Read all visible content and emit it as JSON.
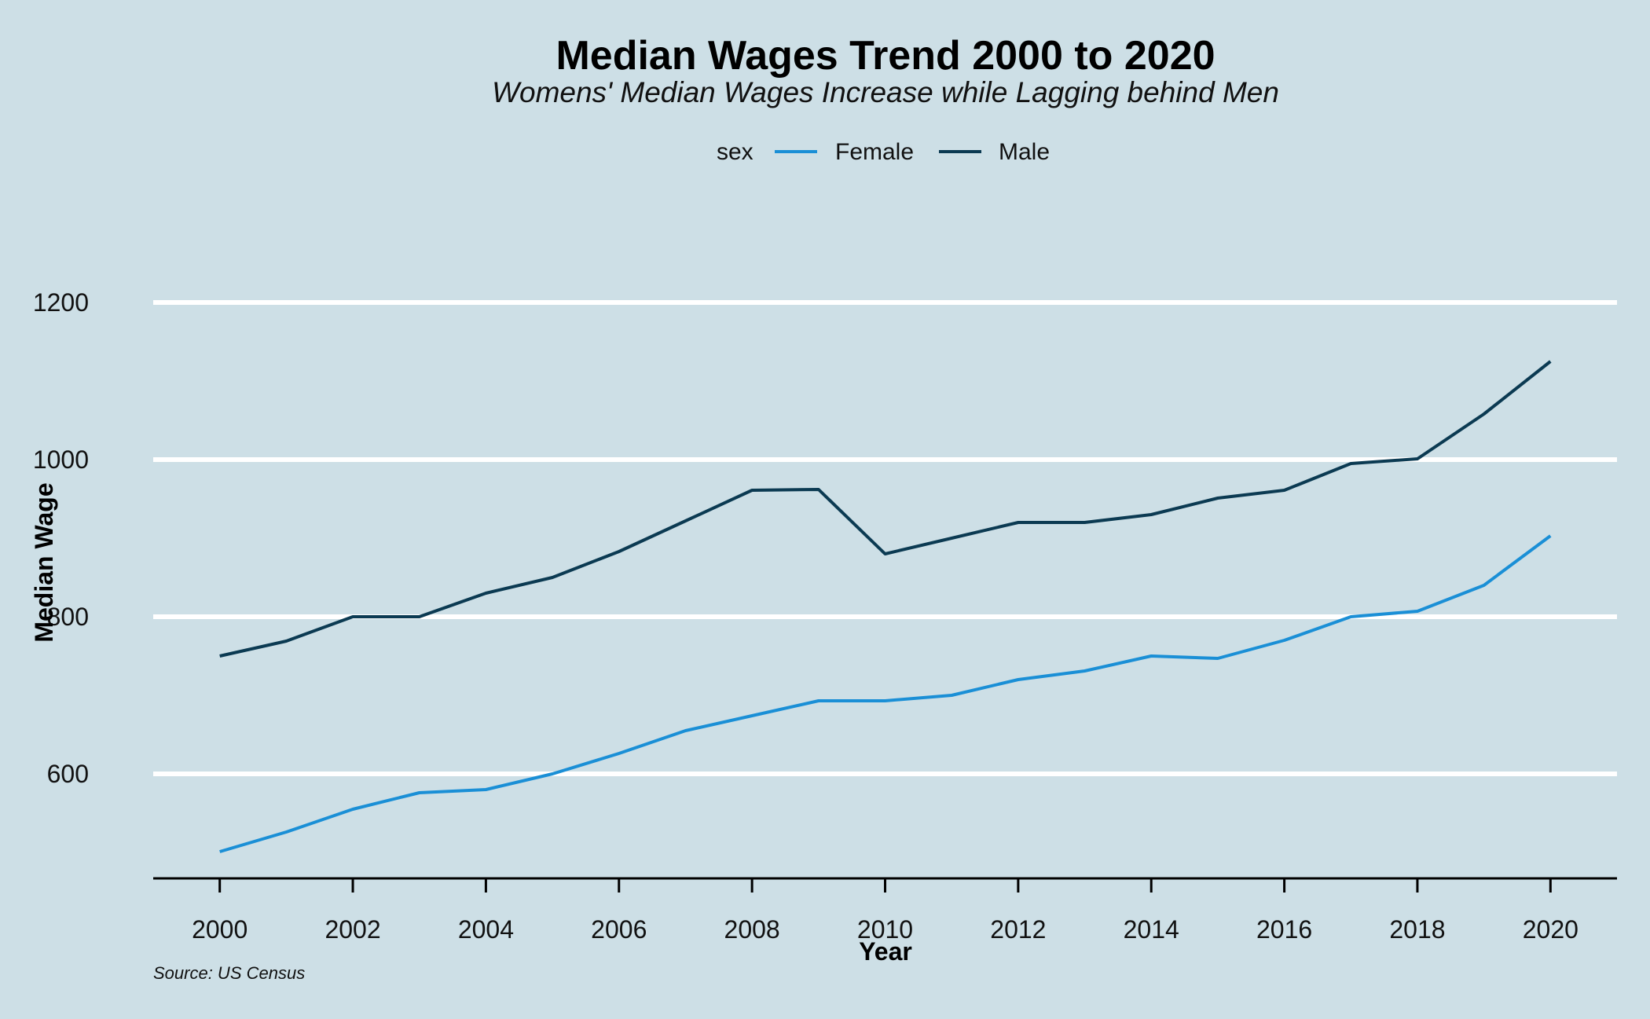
{
  "chart_data": {
    "type": "line",
    "title": "Median Wages Trend 2000 to 2020",
    "subtitle": "Womens' Median Wages Increase while Lagging behind Men",
    "caption": "Source: US Census",
    "xlabel": "Year",
    "ylabel": "Median Wage",
    "legend_title": "sex",
    "legend_position": "top",
    "grid": "horizontal-major",
    "xlim": [
      1999,
      2021
    ],
    "ylim": [
      467,
      1285
    ],
    "x_ticks": [
      2000,
      2002,
      2004,
      2006,
      2008,
      2010,
      2012,
      2014,
      2016,
      2018,
      2020
    ],
    "y_ticks": [
      600,
      800,
      1000,
      1200
    ],
    "x": [
      2000,
      2001,
      2002,
      2003,
      2004,
      2005,
      2006,
      2007,
      2008,
      2009,
      2010,
      2011,
      2012,
      2013,
      2014,
      2015,
      2016,
      2017,
      2018,
      2019,
      2020
    ],
    "series": [
      {
        "name": "Female",
        "color": "#1a8fd6",
        "values": [
          501,
          526,
          555,
          576,
          580,
          600,
          626,
          655,
          674,
          693,
          693,
          700,
          720,
          731,
          750,
          747,
          770,
          800,
          807,
          840,
          903
        ]
      },
      {
        "name": "Male",
        "color": "#0b3a52",
        "values": [
          750,
          769,
          800,
          800,
          830,
          850,
          883,
          922,
          961,
          962,
          880,
          900,
          920,
          920,
          930,
          951,
          961,
          995,
          1001,
          1058,
          1125
        ]
      }
    ]
  }
}
